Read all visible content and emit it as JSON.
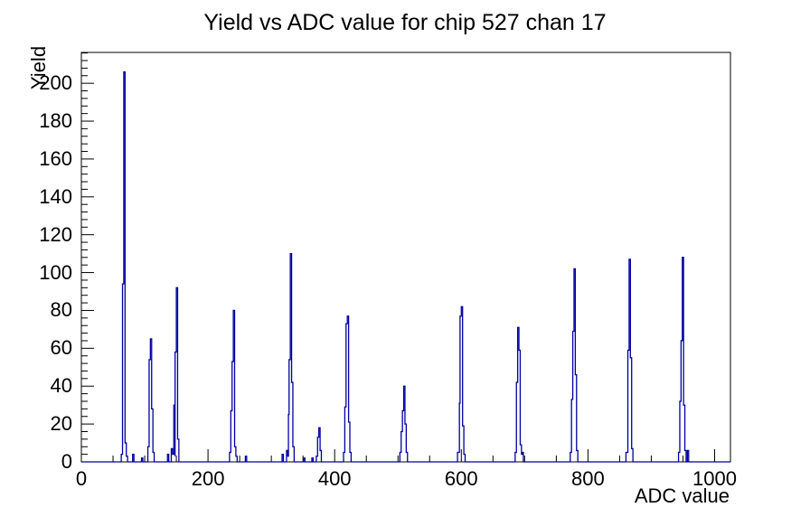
{
  "title": "Yield vs ADC value for chip 527 chan 17",
  "colors": {
    "histogram_line": "#0000a0",
    "axis": "#000000",
    "background": "#ffffff",
    "text": "#000000"
  },
  "chart_data": {
    "type": "bar",
    "title": "Yield vs ADC value for chip 527 chan 17",
    "xlabel": "ADC value",
    "ylabel": "Yield",
    "xlim": [
      0,
      1025
    ],
    "ylim": [
      0,
      216.3
    ],
    "grid": false,
    "legend": "none",
    "x_major_ticks": [
      0,
      200,
      400,
      600,
      800,
      1000
    ],
    "x_minor_step": 50,
    "y_major_ticks": [
      0,
      20,
      40,
      60,
      80,
      100,
      120,
      140,
      160,
      180,
      200
    ],
    "y_minor_step": 4,
    "bin_width": 2,
    "peaks": [
      {
        "adc": 68,
        "peak_height": 206,
        "peak_index": 2,
        "bins": [
          4,
          94,
          206,
          10,
          3
        ]
      },
      {
        "adc": 110,
        "peak_height": 65,
        "peak_index": 2,
        "bins": [
          8,
          54,
          65,
          28,
          5
        ]
      },
      {
        "adc": 151,
        "peak_height": 92,
        "peak_index": 3,
        "bins": [
          4,
          30,
          58,
          92,
          12
        ]
      },
      {
        "adc": 241,
        "peak_height": 80,
        "peak_index": 3,
        "bins": [
          5,
          27,
          53,
          80,
          8,
          3
        ]
      },
      {
        "adc": 331,
        "peak_height": 110,
        "peak_index": 3,
        "bins": [
          6,
          25,
          54,
          110,
          42,
          8
        ]
      },
      {
        "adc": 376,
        "peak_height": 18,
        "peak_index": 2,
        "bins": [
          3,
          13,
          18,
          6
        ]
      },
      {
        "adc": 421,
        "peak_height": 77,
        "peak_index": 3,
        "bins": [
          5,
          29,
          73,
          77,
          21,
          5
        ]
      },
      {
        "adc": 510,
        "peak_height": 40,
        "peak_index": 3,
        "bins": [
          5,
          16,
          27,
          40,
          20,
          5
        ]
      },
      {
        "adc": 601,
        "peak_height": 82,
        "peak_index": 3,
        "bins": [
          5,
          31,
          77,
          82,
          19,
          4
        ]
      },
      {
        "adc": 690,
        "peak_height": 71,
        "peak_index": 2,
        "bins": [
          5,
          42,
          71,
          59,
          9,
          4
        ]
      },
      {
        "adc": 779,
        "peak_height": 102,
        "peak_index": 3,
        "bins": [
          5,
          33,
          69,
          102,
          46,
          6
        ]
      },
      {
        "adc": 866,
        "peak_height": 107,
        "peak_index": 2,
        "bins": [
          5,
          59,
          107,
          55,
          7
        ]
      },
      {
        "adc": 950,
        "peak_height": 108,
        "peak_index": 3,
        "bins": [
          5,
          32,
          64,
          108,
          30,
          6
        ]
      }
    ],
    "noise_bins": [
      {
        "adc": 82,
        "h": 4
      },
      {
        "adc": 96,
        "h": 2
      },
      {
        "adc": 137,
        "h": 4
      },
      {
        "adc": 143,
        "h": 7
      },
      {
        "adc": 147,
        "h": 3
      },
      {
        "adc": 260,
        "h": 3
      },
      {
        "adc": 318,
        "h": 4
      },
      {
        "adc": 326,
        "h": 3
      },
      {
        "adc": 352,
        "h": 2
      },
      {
        "adc": 365,
        "h": 2
      },
      {
        "adc": 596,
        "h": 5
      },
      {
        "adc": 697,
        "h": 5
      },
      {
        "adc": 861,
        "h": 5
      },
      {
        "adc": 958,
        "h": 6
      }
    ]
  }
}
